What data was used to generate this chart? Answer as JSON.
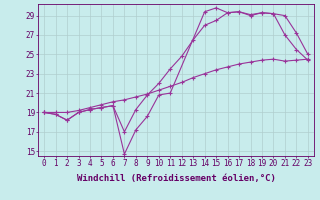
{
  "xlabel": "Windchill (Refroidissement éolien,°C)",
  "bg_color": "#c8ecec",
  "grid_color": "#b0cece",
  "line_color": "#993399",
  "xlim": [
    -0.5,
    23.5
  ],
  "ylim": [
    14.5,
    30.2
  ],
  "xticks": [
    0,
    1,
    2,
    3,
    4,
    5,
    6,
    7,
    8,
    9,
    10,
    11,
    12,
    13,
    14,
    15,
    16,
    17,
    18,
    19,
    20,
    21,
    22,
    23
  ],
  "yticks": [
    15,
    17,
    19,
    21,
    23,
    25,
    27,
    29
  ],
  "line1_x": [
    0,
    1,
    2,
    3,
    4,
    5,
    6,
    7,
    8,
    9,
    10,
    11,
    14,
    15,
    16,
    17,
    18,
    19,
    20,
    21,
    22,
    23
  ],
  "line1_y": [
    19.0,
    18.8,
    18.2,
    19.0,
    19.3,
    19.5,
    19.7,
    14.7,
    17.2,
    18.6,
    20.8,
    21.0,
    29.4,
    29.8,
    29.3,
    29.4,
    29.1,
    29.3,
    29.2,
    29.0,
    27.2,
    25.0
  ],
  "line2_x": [
    0,
    1,
    2,
    3,
    4,
    5,
    6,
    7,
    8,
    9,
    10,
    11,
    12,
    13,
    14,
    15,
    16,
    17,
    18,
    19,
    20,
    21,
    22,
    23
  ],
  "line2_y": [
    19.0,
    18.8,
    18.2,
    19.0,
    19.3,
    19.5,
    19.7,
    17.0,
    19.3,
    20.8,
    22.0,
    23.5,
    24.8,
    26.5,
    28.0,
    28.5,
    29.3,
    29.4,
    29.0,
    29.3,
    29.2,
    27.0,
    25.5,
    24.4
  ],
  "line3_x": [
    0,
    1,
    2,
    3,
    4,
    5,
    6,
    7,
    8,
    9,
    10,
    11,
    12,
    13,
    14,
    15,
    16,
    17,
    18,
    19,
    20,
    21,
    22,
    23
  ],
  "line3_y": [
    19.0,
    19.0,
    19.0,
    19.2,
    19.5,
    19.8,
    20.1,
    20.3,
    20.6,
    20.9,
    21.3,
    21.7,
    22.1,
    22.6,
    23.0,
    23.4,
    23.7,
    24.0,
    24.2,
    24.4,
    24.5,
    24.3,
    24.4,
    24.5
  ],
  "font_color": "#660066",
  "tick_fontsize": 5.5,
  "label_fontsize": 6.5
}
